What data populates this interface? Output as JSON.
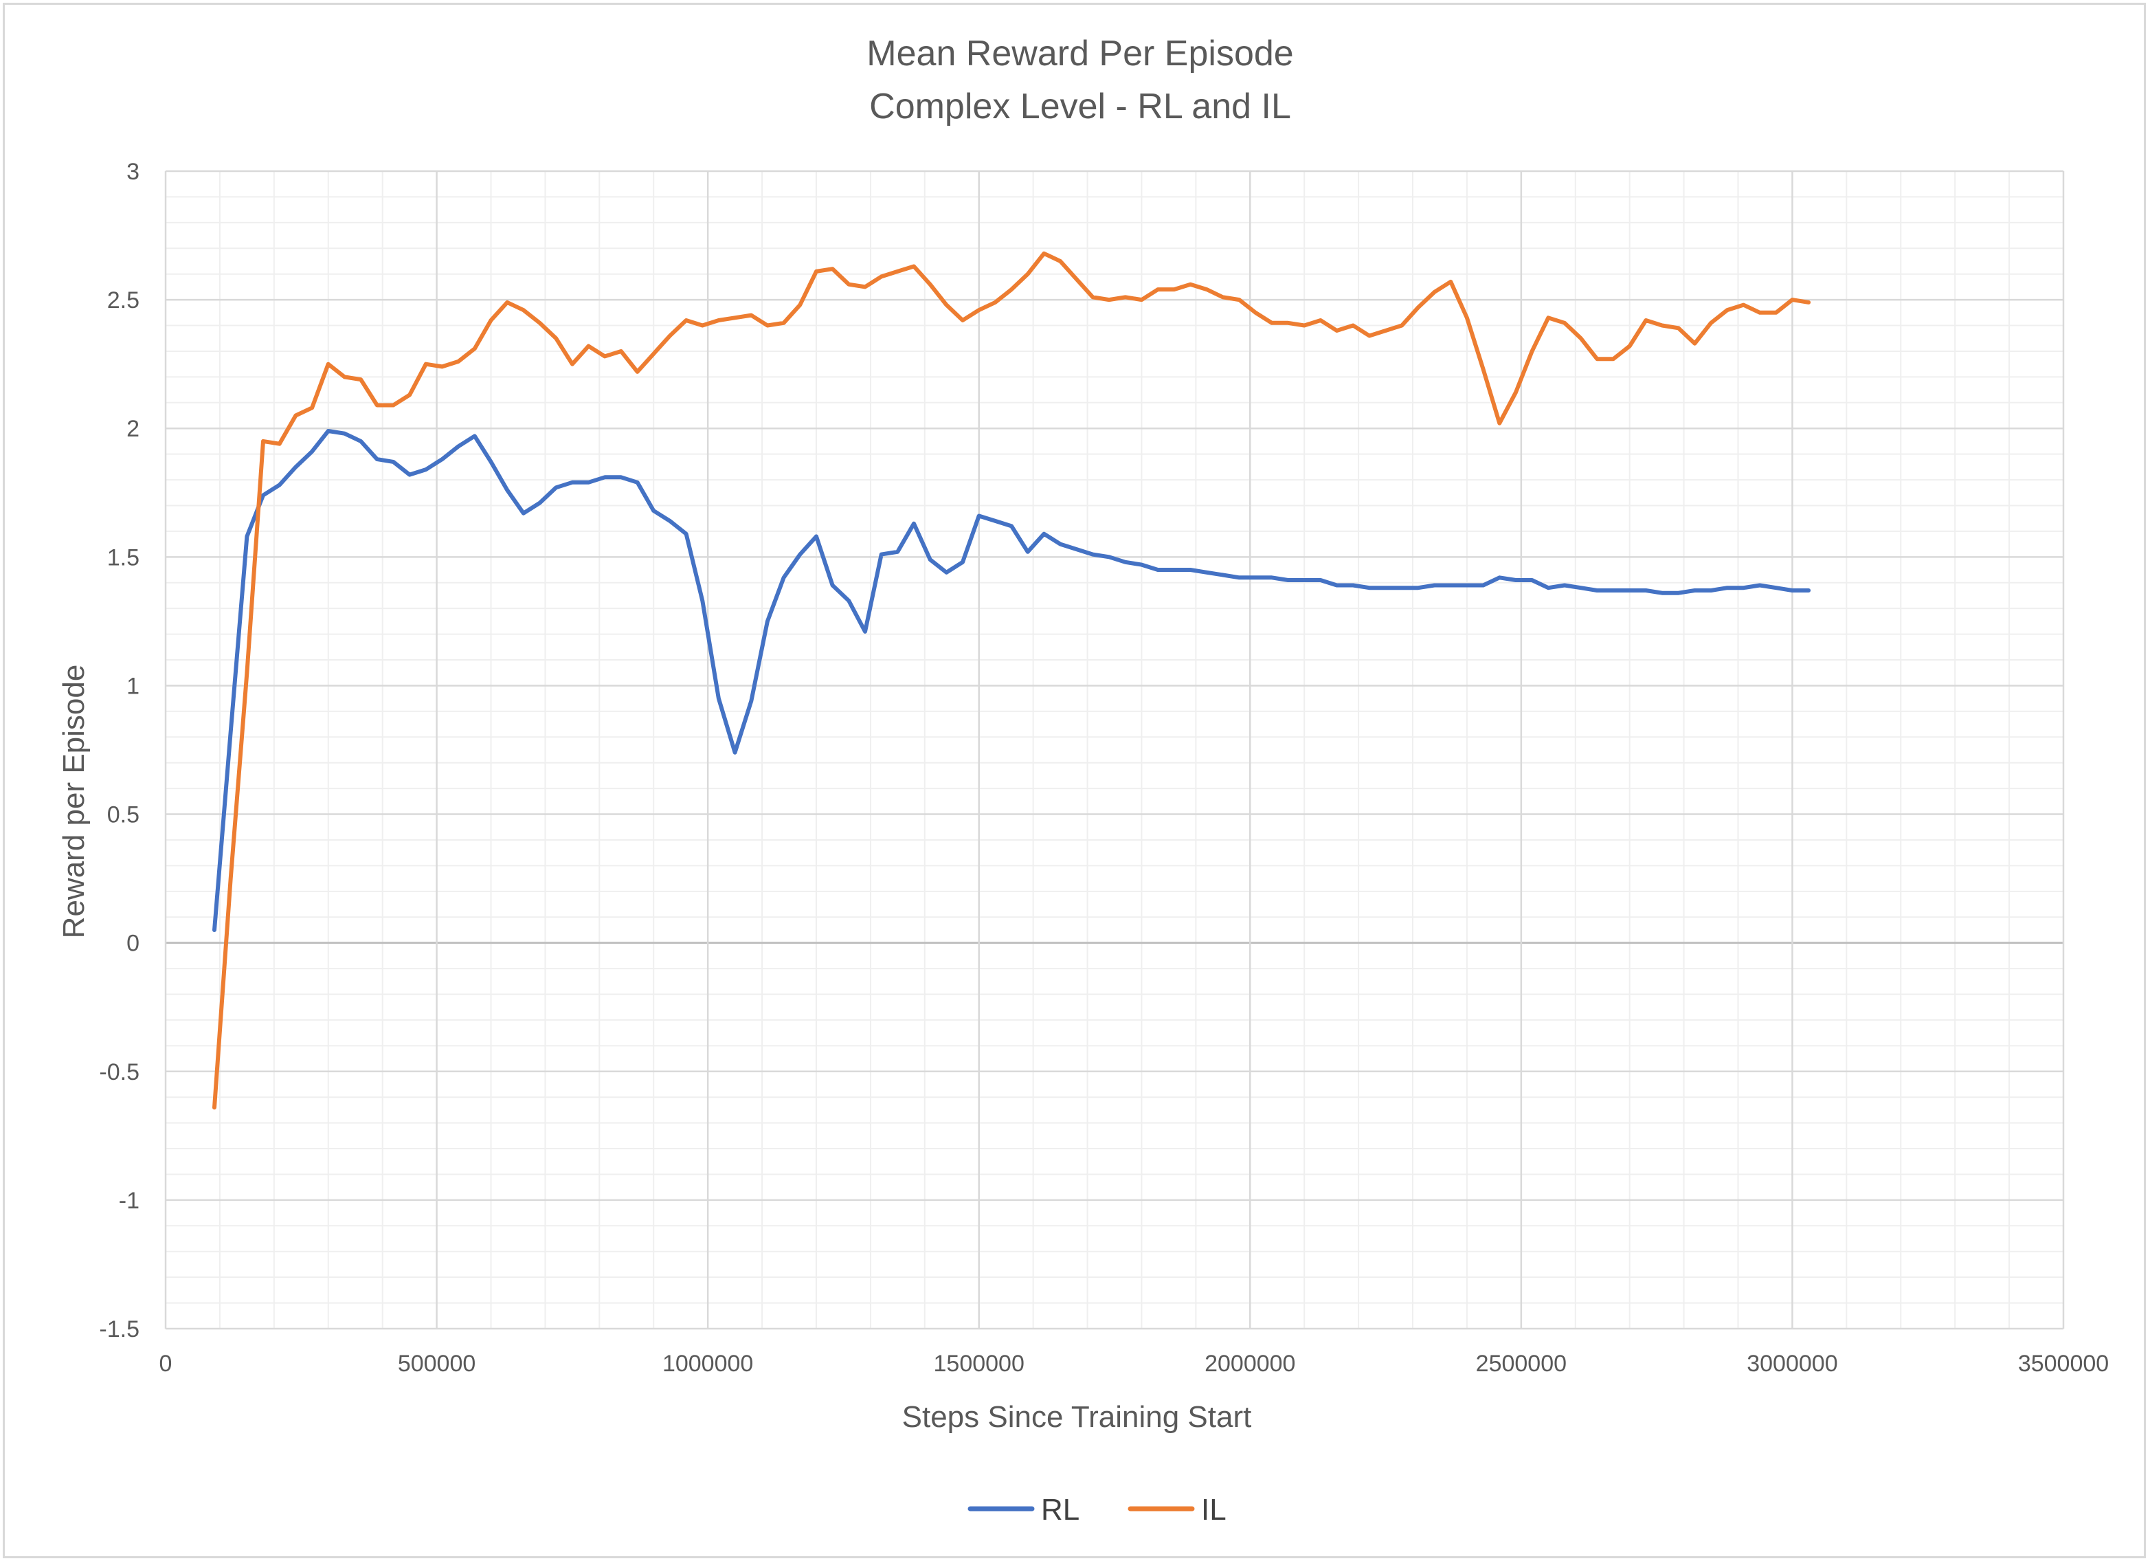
{
  "chart_data": {
    "type": "line",
    "title": "Mean Reward Per Episode",
    "subtitle": "Complex Level - RL and IL",
    "xlabel": "Steps Since Training Start",
    "ylabel": "Reward per Episode",
    "xlim": [
      0,
      3500000
    ],
    "ylim": [
      -1.5,
      3
    ],
    "x_ticks": [
      "0",
      "500000",
      "1000000",
      "1500000",
      "2000000",
      "2500000",
      "3000000",
      "3500000"
    ],
    "y_ticks": [
      "-1.5",
      "-1",
      "-0.5",
      "0",
      "0.5",
      "1",
      "1.5",
      "2",
      "2.5",
      "3"
    ],
    "x_major_step": 500000,
    "x_minor_step": 100000,
    "y_major_step": 0.5,
    "y_minor_step": 0.1,
    "grid": true,
    "legend_position": "bottom",
    "colors": {
      "gridline_major": "#d9d9d9",
      "gridline_minor": "#efefef",
      "zero_line": "#bfbfbf"
    },
    "series": [
      {
        "name": "RL",
        "color": "#4472C4",
        "x": [
          90000,
          120000,
          150000,
          180000,
          210000,
          240000,
          270000,
          300000,
          330000,
          360000,
          390000,
          420000,
          450000,
          480000,
          510000,
          540000,
          570000,
          600000,
          630000,
          660000,
          690000,
          720000,
          750000,
          780000,
          810000,
          840000,
          870000,
          900000,
          930000,
          960000,
          990000,
          1020000,
          1050000,
          1080000,
          1110000,
          1140000,
          1170000,
          1200000,
          1230000,
          1260000,
          1290000,
          1320000,
          1350000,
          1380000,
          1410000,
          1440000,
          1470000,
          1500000,
          1530000,
          1560000,
          1590000,
          1620000,
          1650000,
          1680000,
          1710000,
          1740000,
          1770000,
          1800000,
          1830000,
          1860000,
          1890000,
          1920000,
          1950000,
          1980000,
          2010000,
          2040000,
          2070000,
          2100000,
          2130000,
          2160000,
          2190000,
          2220000,
          2250000,
          2280000,
          2310000,
          2340000,
          2370000,
          2400000,
          2430000,
          2460000,
          2490000,
          2520000,
          2550000,
          2580000,
          2610000,
          2640000,
          2670000,
          2700000,
          2730000,
          2760000,
          2790000,
          2820000,
          2850000,
          2880000,
          2910000,
          2940000,
          2970000,
          3000000,
          3030000
        ],
        "values": [
          0.05,
          0.82,
          1.58,
          1.74,
          1.78,
          1.85,
          1.91,
          1.99,
          1.98,
          1.95,
          1.88,
          1.87,
          1.82,
          1.84,
          1.88,
          1.93,
          1.97,
          1.87,
          1.76,
          1.67,
          1.71,
          1.77,
          1.79,
          1.79,
          1.81,
          1.81,
          1.79,
          1.68,
          1.64,
          1.59,
          1.33,
          0.95,
          0.74,
          0.94,
          1.25,
          1.42,
          1.51,
          1.58,
          1.39,
          1.33,
          1.21,
          1.51,
          1.52,
          1.63,
          1.49,
          1.44,
          1.48,
          1.66,
          1.64,
          1.62,
          1.52,
          1.59,
          1.55,
          1.53,
          1.51,
          1.5,
          1.48,
          1.47,
          1.45,
          1.45,
          1.45,
          1.44,
          1.43,
          1.42,
          1.42,
          1.42,
          1.41,
          1.41,
          1.41,
          1.39,
          1.39,
          1.38,
          1.38,
          1.38,
          1.38,
          1.39,
          1.39,
          1.39,
          1.39,
          1.42,
          1.41,
          1.41,
          1.38,
          1.39,
          1.38,
          1.37,
          1.37,
          1.37,
          1.37,
          1.36,
          1.36,
          1.37,
          1.37,
          1.38,
          1.38,
          1.39,
          1.38,
          1.37,
          1.37
        ]
      },
      {
        "name": "IL",
        "color": "#ED7D31",
        "x": [
          90000,
          120000,
          150000,
          180000,
          210000,
          240000,
          270000,
          300000,
          330000,
          360000,
          390000,
          420000,
          450000,
          480000,
          510000,
          540000,
          570000,
          600000,
          630000,
          660000,
          690000,
          720000,
          750000,
          780000,
          810000,
          840000,
          870000,
          900000,
          930000,
          960000,
          990000,
          1020000,
          1050000,
          1080000,
          1110000,
          1140000,
          1170000,
          1200000,
          1230000,
          1260000,
          1290000,
          1320000,
          1350000,
          1380000,
          1410000,
          1440000,
          1470000,
          1500000,
          1530000,
          1560000,
          1590000,
          1620000,
          1650000,
          1680000,
          1710000,
          1740000,
          1770000,
          1800000,
          1830000,
          1860000,
          1890000,
          1920000,
          1950000,
          1980000,
          2010000,
          2040000,
          2070000,
          2100000,
          2130000,
          2160000,
          2190000,
          2220000,
          2250000,
          2280000,
          2310000,
          2340000,
          2370000,
          2400000,
          2430000,
          2460000,
          2490000,
          2520000,
          2550000,
          2580000,
          2610000,
          2640000,
          2670000,
          2700000,
          2730000,
          2760000,
          2790000,
          2820000,
          2850000,
          2880000,
          2910000,
          2940000,
          2970000,
          3000000,
          3030000
        ],
        "values": [
          -0.64,
          0.25,
          1.05,
          1.95,
          1.94,
          2.05,
          2.08,
          2.25,
          2.2,
          2.19,
          2.09,
          2.09,
          2.13,
          2.25,
          2.24,
          2.26,
          2.31,
          2.42,
          2.49,
          2.46,
          2.41,
          2.35,
          2.25,
          2.32,
          2.28,
          2.3,
          2.22,
          2.29,
          2.36,
          2.42,
          2.4,
          2.42,
          2.43,
          2.44,
          2.4,
          2.41,
          2.48,
          2.61,
          2.62,
          2.56,
          2.55,
          2.59,
          2.61,
          2.63,
          2.56,
          2.48,
          2.42,
          2.46,
          2.49,
          2.54,
          2.6,
          2.68,
          2.65,
          2.58,
          2.51,
          2.5,
          2.51,
          2.5,
          2.54,
          2.54,
          2.56,
          2.54,
          2.51,
          2.5,
          2.45,
          2.41,
          2.41,
          2.4,
          2.42,
          2.38,
          2.4,
          2.36,
          2.38,
          2.4,
          2.47,
          2.53,
          2.57,
          2.43,
          2.23,
          2.02,
          2.14,
          2.3,
          2.43,
          2.41,
          2.35,
          2.27,
          2.27,
          2.32,
          2.42,
          2.4,
          2.39,
          2.33,
          2.41,
          2.46,
          2.48,
          2.45,
          2.45,
          2.5,
          2.49
        ]
      }
    ]
  }
}
